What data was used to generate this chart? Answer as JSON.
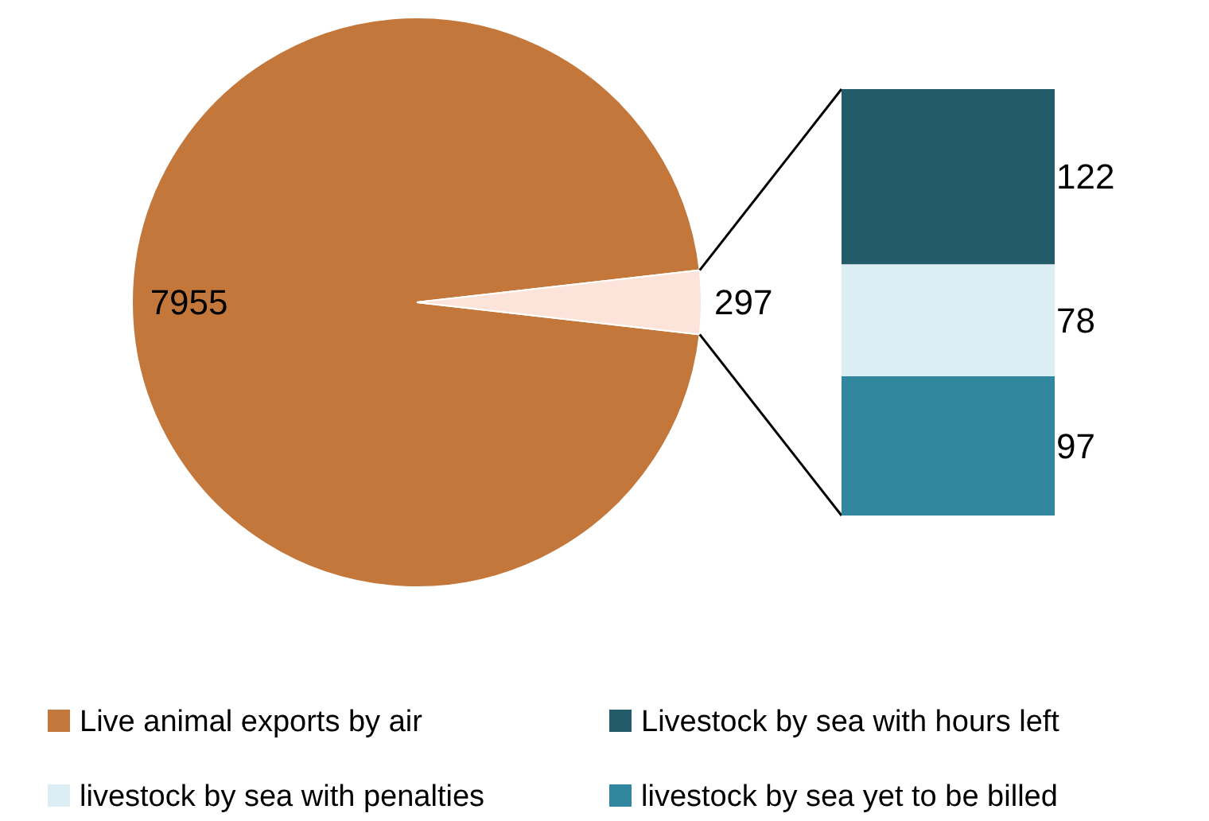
{
  "chart_data": [
    {
      "type": "pie",
      "categories": [
        "Live animal exports by air",
        null
      ],
      "values": [
        7955,
        297
      ],
      "colors": [
        "#c4773a",
        "#fce4da"
      ],
      "data_labels": true,
      "legend": "bottom"
    },
    {
      "type": "bar",
      "stacked": true,
      "categories": [
        null
      ],
      "data_labels": true,
      "legend": "bottom",
      "series": [
        {
          "name": "livestock by sea yet to be billed",
          "color": "#31879e",
          "values": [
            97
          ]
        },
        {
          "name": "livestock by sea with penalties",
          "color": "#dceef4",
          "values": [
            78
          ]
        },
        {
          "name": "Livestock by sea with hours left",
          "color": "#235b6b",
          "values": [
            122
          ]
        }
      ]
    }
  ]
}
